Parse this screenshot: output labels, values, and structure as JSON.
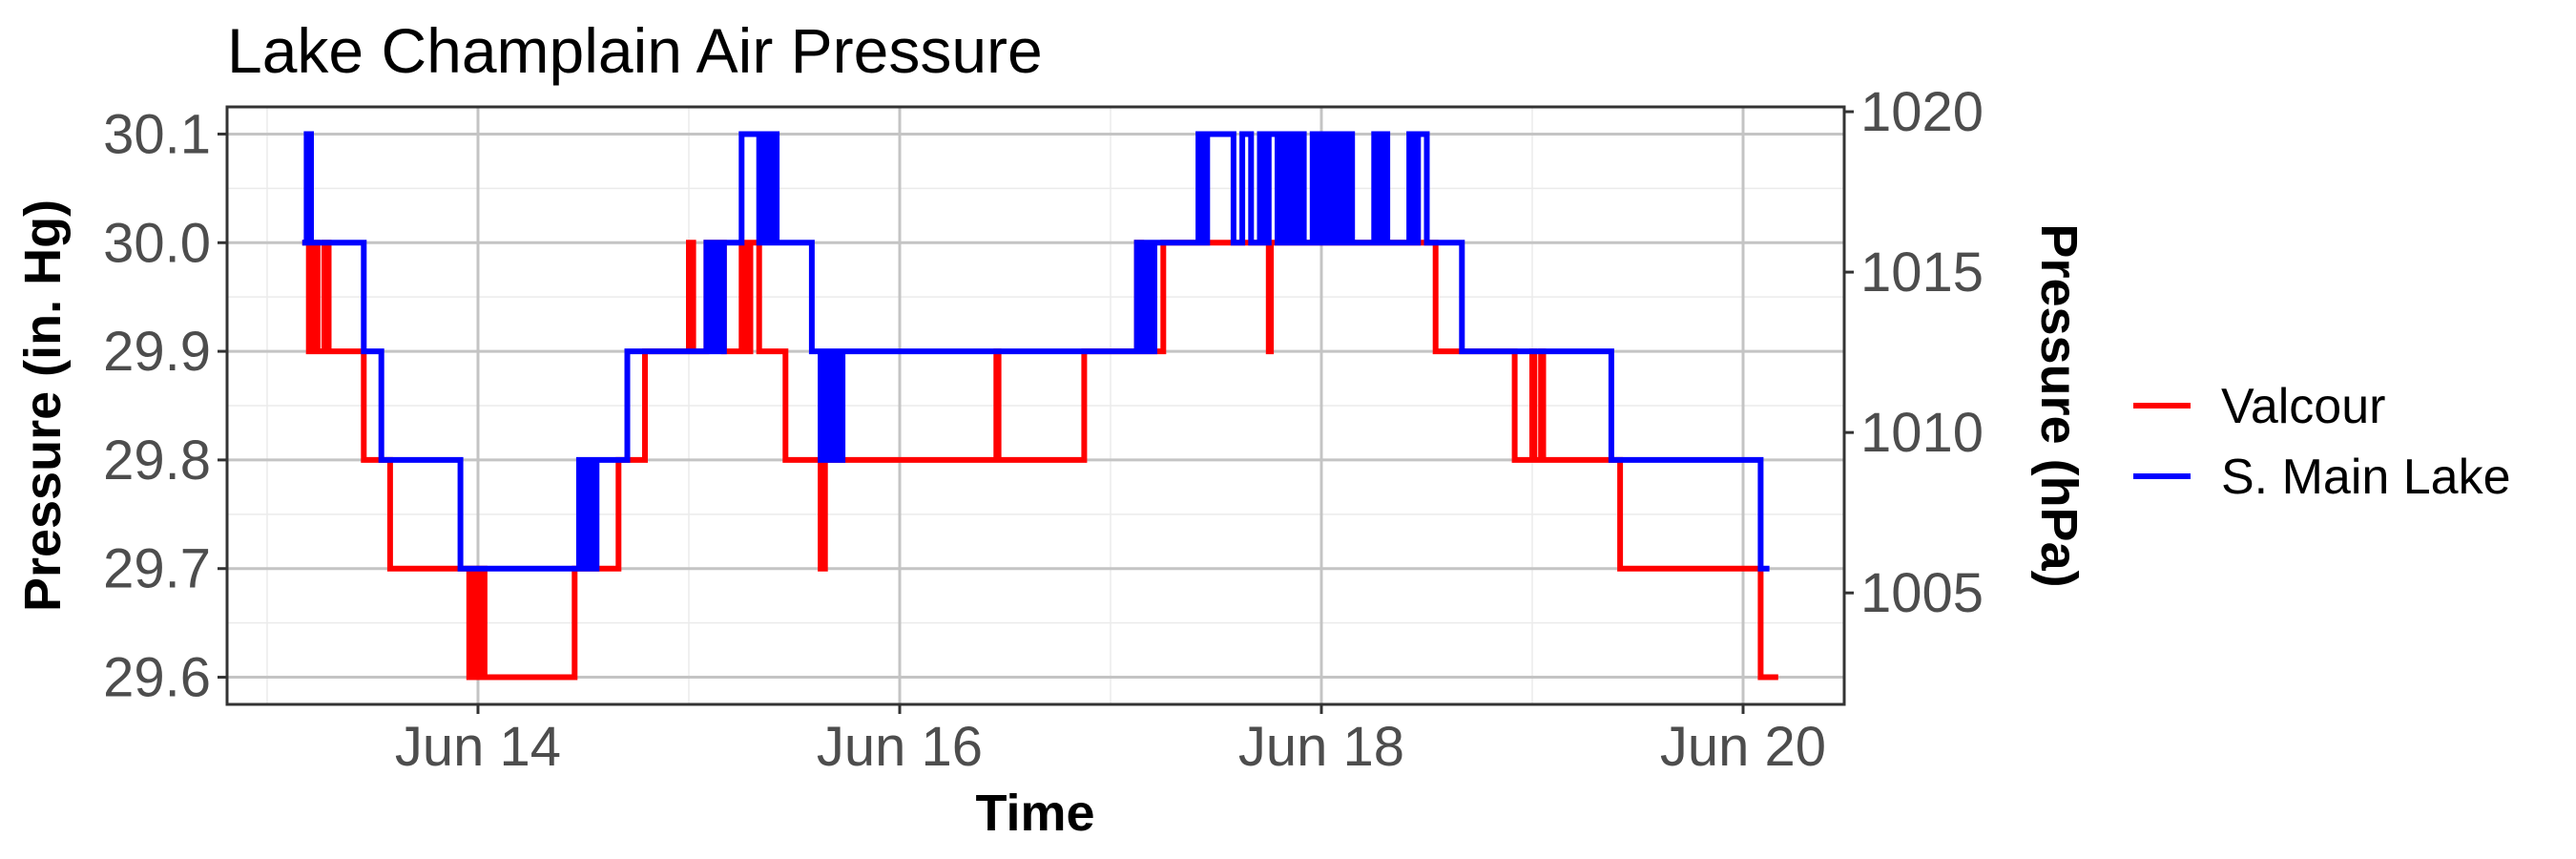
{
  "chart_data": {
    "type": "line",
    "title": "Lake Champlain Air Pressure",
    "xlabel": "Time",
    "ylabel": "Pressure (in. Hg)",
    "y2label": "Pressure (hPa)",
    "x_tick_labels": [
      "Jun 14",
      "Jun 16",
      "Jun 18",
      "Jun 20"
    ],
    "x_tick_dates": [
      "2023-06-14",
      "2023-06-16",
      "2023-06-18",
      "2023-06-20"
    ],
    "y_ticks": [
      "29.6",
      "29.7",
      "29.8",
      "29.9",
      "30.0",
      "30.1"
    ],
    "y2_ticks": [
      "1005",
      "1010",
      "1015",
      "1020"
    ],
    "ylim": [
      29.575,
      30.125
    ],
    "grid": true,
    "legend_position": "right",
    "series": [
      {
        "name": "Valcour",
        "color": "#ff0000",
        "step": true,
        "points": [
          [
            "06-13 04:00",
            30.0
          ],
          [
            "06-13 04:45",
            29.9
          ],
          [
            "06-13 05:15",
            30.0
          ],
          [
            "06-13 05:45",
            29.9
          ],
          [
            "06-13 06:30",
            30.0
          ],
          [
            "06-13 07:00",
            29.9
          ],
          [
            "06-13 11:00",
            29.8
          ],
          [
            "06-13 14:00",
            29.7
          ],
          [
            "06-13 23:00",
            29.6
          ],
          [
            "06-13 23:30",
            29.7
          ],
          [
            "06-14 00:00",
            29.6
          ],
          [
            "06-14 00:15",
            29.7
          ],
          [
            "06-14 00:45",
            29.6
          ],
          [
            "06-14 11:00",
            29.7
          ],
          [
            "06-14 16:00",
            29.8
          ],
          [
            "06-14 19:00",
            29.9
          ],
          [
            "06-15 00:00",
            30.0
          ],
          [
            "06-15 00:30",
            29.9
          ],
          [
            "06-15 02:00",
            30.0
          ],
          [
            "06-15 04:00",
            29.9
          ],
          [
            "06-15 06:00",
            30.0
          ],
          [
            "06-15 06:30",
            29.9
          ],
          [
            "06-15 07:00",
            30.0
          ],
          [
            "06-15 08:00",
            29.9
          ],
          [
            "06-15 11:00",
            29.8
          ],
          [
            "06-15 15:00",
            29.7
          ],
          [
            "06-15 15:30",
            29.8
          ],
          [
            "06-16 11:00",
            29.9
          ],
          [
            "06-16 11:15",
            29.8
          ],
          [
            "06-16 21:00",
            29.9
          ],
          [
            "06-17 03:00",
            30.0
          ],
          [
            "06-17 03:30",
            29.9
          ],
          [
            "06-17 06:00",
            30.0
          ],
          [
            "06-17 18:00",
            29.9
          ],
          [
            "06-17 18:15",
            30.0
          ],
          [
            "06-18 13:00",
            29.9
          ],
          [
            "06-18 22:00",
            29.8
          ],
          [
            "06-19 00:00",
            29.9
          ],
          [
            "06-19 00:15",
            29.8
          ],
          [
            "06-19 01:00",
            29.9
          ],
          [
            "06-19 01:15",
            29.8
          ],
          [
            "06-19 10:00",
            29.7
          ],
          [
            "06-20 02:00",
            29.6
          ],
          [
            "06-20 04:00",
            29.6
          ]
        ]
      },
      {
        "name": "S. Main Lake",
        "color": "#0000ff",
        "step": true,
        "points": [
          [
            "06-13 04:00",
            30.0
          ],
          [
            "06-13 04:30",
            30.1
          ],
          [
            "06-13 05:00",
            30.0
          ],
          [
            "06-13 11:00",
            29.9
          ],
          [
            "06-13 13:00",
            29.8
          ],
          [
            "06-13 22:00",
            29.7
          ],
          [
            "06-14 11:30",
            29.8
          ],
          [
            "06-14 12:00",
            29.7
          ],
          [
            "06-14 12:30",
            29.8
          ],
          [
            "06-14 13:00",
            29.7
          ],
          [
            "06-14 13:30",
            29.8
          ],
          [
            "06-14 17:00",
            29.9
          ],
          [
            "06-15 02:00",
            30.0
          ],
          [
            "06-15 02:30",
            29.9
          ],
          [
            "06-15 03:00",
            30.0
          ],
          [
            "06-15 03:30",
            29.9
          ],
          [
            "06-15 04:00",
            30.0
          ],
          [
            "06-15 06:00",
            30.1
          ],
          [
            "06-15 08:00",
            30.0
          ],
          [
            "06-15 08:30",
            30.1
          ],
          [
            "06-15 09:00",
            30.0
          ],
          [
            "06-15 09:30",
            30.1
          ],
          [
            "06-15 10:00",
            30.0
          ],
          [
            "06-15 14:00",
            29.9
          ],
          [
            "06-15 15:00",
            29.8
          ],
          [
            "06-15 15:30",
            29.9
          ],
          [
            "06-15 16:00",
            29.8
          ],
          [
            "06-15 16:30",
            29.9
          ],
          [
            "06-15 17:00",
            29.8
          ],
          [
            "06-15 17:30",
            29.9
          ],
          [
            "06-17 03:00",
            30.0
          ],
          [
            "06-17 03:30",
            29.9
          ],
          [
            "06-17 04:00",
            30.0
          ],
          [
            "06-17 04:30",
            29.9
          ],
          [
            "06-17 05:00",
            30.0
          ],
          [
            "06-17 10:00",
            30.1
          ],
          [
            "06-17 10:30",
            30.0
          ],
          [
            "06-17 11:00",
            30.1
          ],
          [
            "06-17 14:00",
            30.0
          ],
          [
            "06-17 15:00",
            30.1
          ],
          [
            "06-17 16:00",
            30.0
          ],
          [
            "06-17 17:00",
            30.1
          ],
          [
            "06-17 17:30",
            30.0
          ],
          [
            "06-17 18:00",
            30.1
          ],
          [
            "06-17 19:00",
            30.0
          ],
          [
            "06-17 19:30",
            30.1
          ],
          [
            "06-17 20:00",
            30.0
          ],
          [
            "06-17 20:30",
            30.1
          ],
          [
            "06-17 21:00",
            30.0
          ],
          [
            "06-17 21:30",
            30.1
          ],
          [
            "06-17 22:00",
            30.0
          ],
          [
            "06-17 23:00",
            30.1
          ],
          [
            "06-17 23:30",
            30.0
          ],
          [
            "06-18 00:00",
            30.1
          ],
          [
            "06-18 00:30",
            30.0
          ],
          [
            "06-18 01:00",
            30.1
          ],
          [
            "06-18 01:30",
            30.0
          ],
          [
            "06-18 02:00",
            30.1
          ],
          [
            "06-18 02:30",
            30.0
          ],
          [
            "06-18 03:00",
            30.1
          ],
          [
            "06-18 03:30",
            30.0
          ],
          [
            "06-18 06:00",
            30.1
          ],
          [
            "06-18 06:30",
            30.0
          ],
          [
            "06-18 07:00",
            30.1
          ],
          [
            "06-18 07:30",
            30.0
          ],
          [
            "06-18 10:00",
            30.1
          ],
          [
            "06-18 10:30",
            30.0
          ],
          [
            "06-18 11:00",
            30.1
          ],
          [
            "06-18 12:00",
            30.0
          ],
          [
            "06-18 16:00",
            29.9
          ],
          [
            "06-19 09:00",
            29.8
          ],
          [
            "06-20 02:00",
            29.7
          ],
          [
            "06-20 03:00",
            29.7
          ]
        ]
      }
    ]
  }
}
